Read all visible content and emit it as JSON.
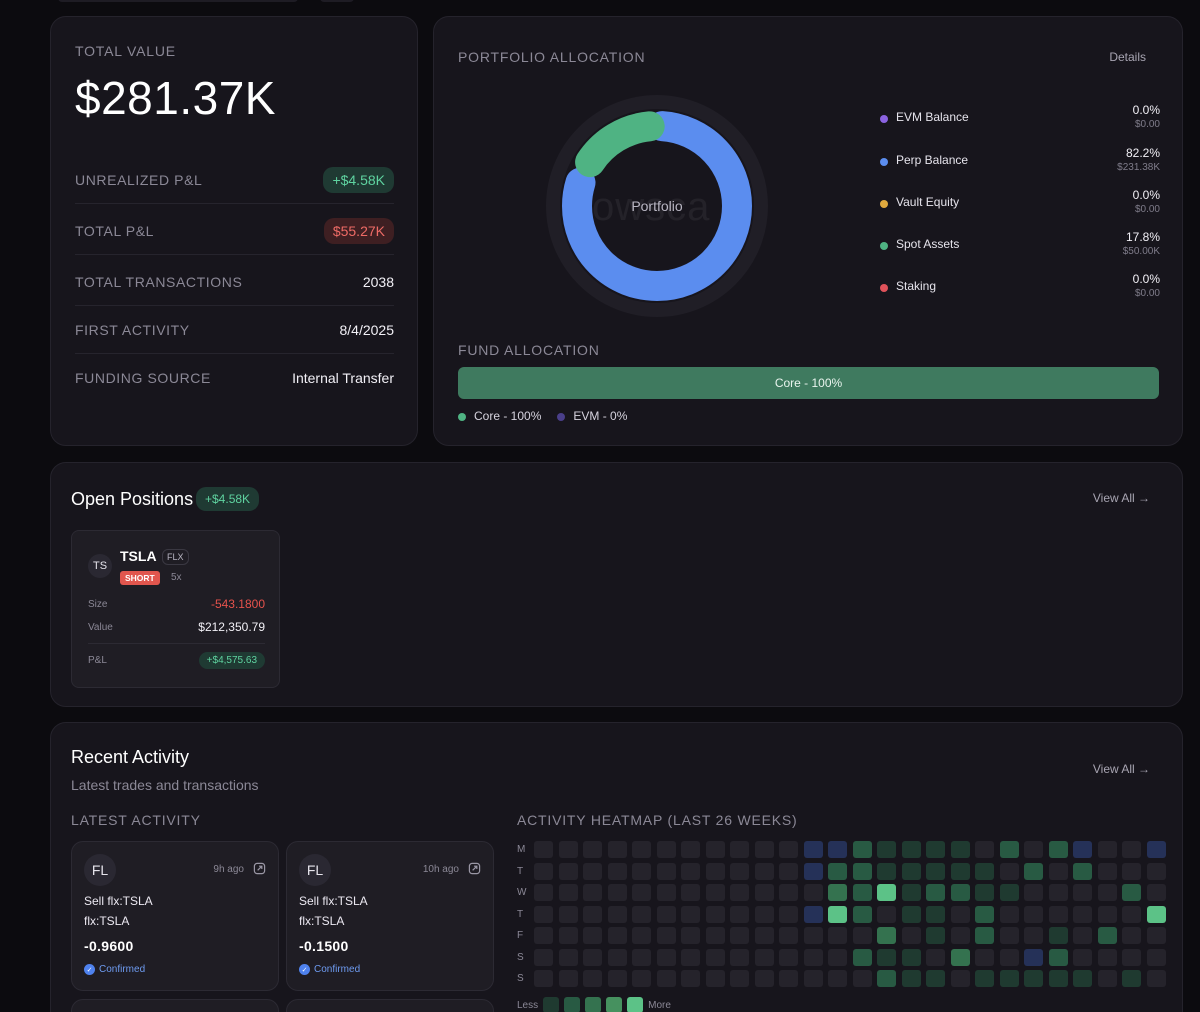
{
  "summary": {
    "total_value_label": "TOTAL VALUE",
    "total_value": "$281.37K",
    "rows": [
      {
        "label": "UNREALIZED P&L",
        "value": "+$4.58K",
        "style": "green"
      },
      {
        "label": "TOTAL P&L",
        "value": "$55.27K",
        "style": "red"
      },
      {
        "label": "TOTAL TRANSACTIONS",
        "value": "2038",
        "style": "plain"
      },
      {
        "label": "FIRST ACTIVITY",
        "value": "8/4/2025",
        "style": "plain"
      },
      {
        "label": "FUNDING SOURCE",
        "value": "Internal Transfer",
        "style": "plain"
      }
    ]
  },
  "allocation": {
    "title": "PORTFOLIO ALLOCATION",
    "details_label": "Details",
    "center_label": "Portfolio",
    "watermark": "owsca",
    "items": [
      {
        "name": "EVM Balance",
        "pct": "0.0%",
        "amount": "$0.00",
        "color": "#8b63e0",
        "fraction": 0.0
      },
      {
        "name": "Perp Balance",
        "pct": "82.2%",
        "amount": "$231.38K",
        "color": "#5b8def",
        "fraction": 0.822
      },
      {
        "name": "Vault Equity",
        "pct": "0.0%",
        "amount": "$0.00",
        "color": "#e0a93e",
        "fraction": 0.0
      },
      {
        "name": "Spot Assets",
        "pct": "17.8%",
        "amount": "$50.00K",
        "color": "#4fb383",
        "fraction": 0.178
      },
      {
        "name": "Staking",
        "pct": "0.0%",
        "amount": "$0.00",
        "color": "#e0525a",
        "fraction": 0.0
      }
    ],
    "fund_title": "FUND ALLOCATION",
    "fund_bar_label": "Core - 100%",
    "fund_bar_fraction": 1.0,
    "fund_legend": [
      {
        "label": "Core - 100%",
        "color": "#4fb383"
      },
      {
        "label": "EVM - 0%",
        "color": "#4a3f8a"
      }
    ]
  },
  "positions": {
    "title": "Open Positions",
    "pnl_badge": "+$4.58K",
    "view_all": "View All →",
    "item": {
      "avatar": "TS",
      "symbol": "TSLA",
      "venue_tag": "FLX",
      "side": "SHORT",
      "leverage": "5x",
      "size_label": "Size",
      "size": "-543.1800",
      "value_label": "Value",
      "value": "$212,350.79",
      "pnl_label": "P&L",
      "pnl": "+$4,575.63"
    }
  },
  "activity": {
    "title": "Recent Activity",
    "subtitle": "Latest trades and transactions",
    "view_all": "View All →",
    "latest_title": "LATEST ACTIVITY",
    "heatmap_title": "ACTIVITY HEATMAP (LAST 26 WEEKS)",
    "items": [
      {
        "avatar": "FL",
        "time": "9h ago",
        "line1": "Sell flx:TSLA",
        "line2": "flx:TSLA",
        "amount": "-0.9600",
        "status": "Confirmed"
      },
      {
        "avatar": "FL",
        "time": "10h ago",
        "line1": "Sell flx:TSLA",
        "line2": "flx:TSLA",
        "amount": "-0.1500",
        "status": "Confirmed"
      }
    ],
    "heatmap": {
      "days": [
        "M",
        "T",
        "W",
        "T",
        "F",
        "S",
        "S"
      ],
      "legend_less": "Less",
      "legend_more": "More",
      "legend_colors": [
        "#1f3a30",
        "#285a43",
        "#34724f",
        "#46915f",
        "#5cc287"
      ],
      "level_colors": {
        "0": "#25232b",
        "1": "#1f3a30",
        "2": "#285a43",
        "3": "#34724f",
        "4": "#5cc287",
        "b": "#253158",
        "p": "#3c2b5e"
      },
      "rows": [
        "00000000000bb211110202b00b0",
        "00000000000b22111110202000",
        "00000000000032412211000020p",
        "00000000000b42011020000004",
        "00000000000000301020010200",
        "00000000000002110300b20000",
        "00000000000000211011111010"
      ]
    }
  }
}
